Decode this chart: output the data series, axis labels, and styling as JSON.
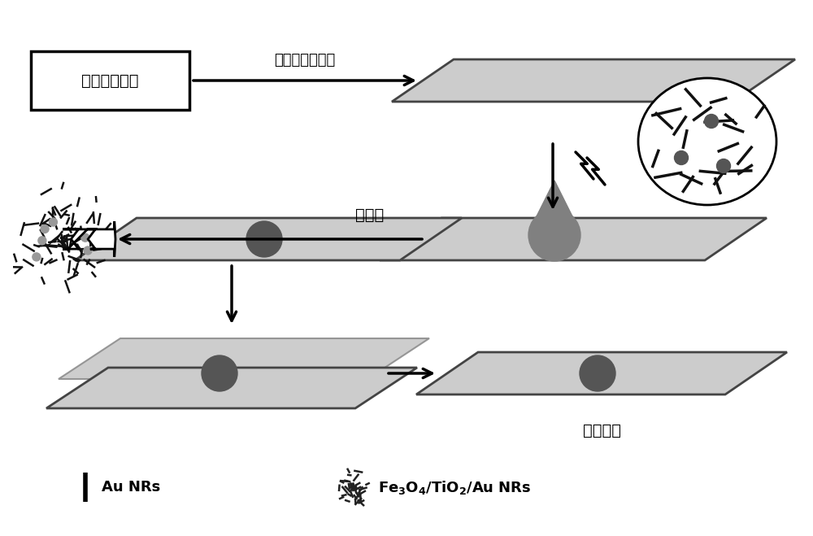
{
  "bg_color": "#ffffff",
  "plate_color": "#cccccc",
  "plate_color2": "#bbbbbb",
  "plate_edge_color": "#444444",
  "dot_color": "#555555",
  "drop_color": "#808080",
  "text_color": "#000000",
  "label_box1": "聚四氟乙烯片",
  "label_arrow1": "旋涂超疏水材料",
  "label_arrow2": "自组装",
  "label_step3": "磁性试纸",
  "legend1": "Au NRs",
  "figsize": [
    10.0,
    6.59
  ],
  "dpi": 100
}
